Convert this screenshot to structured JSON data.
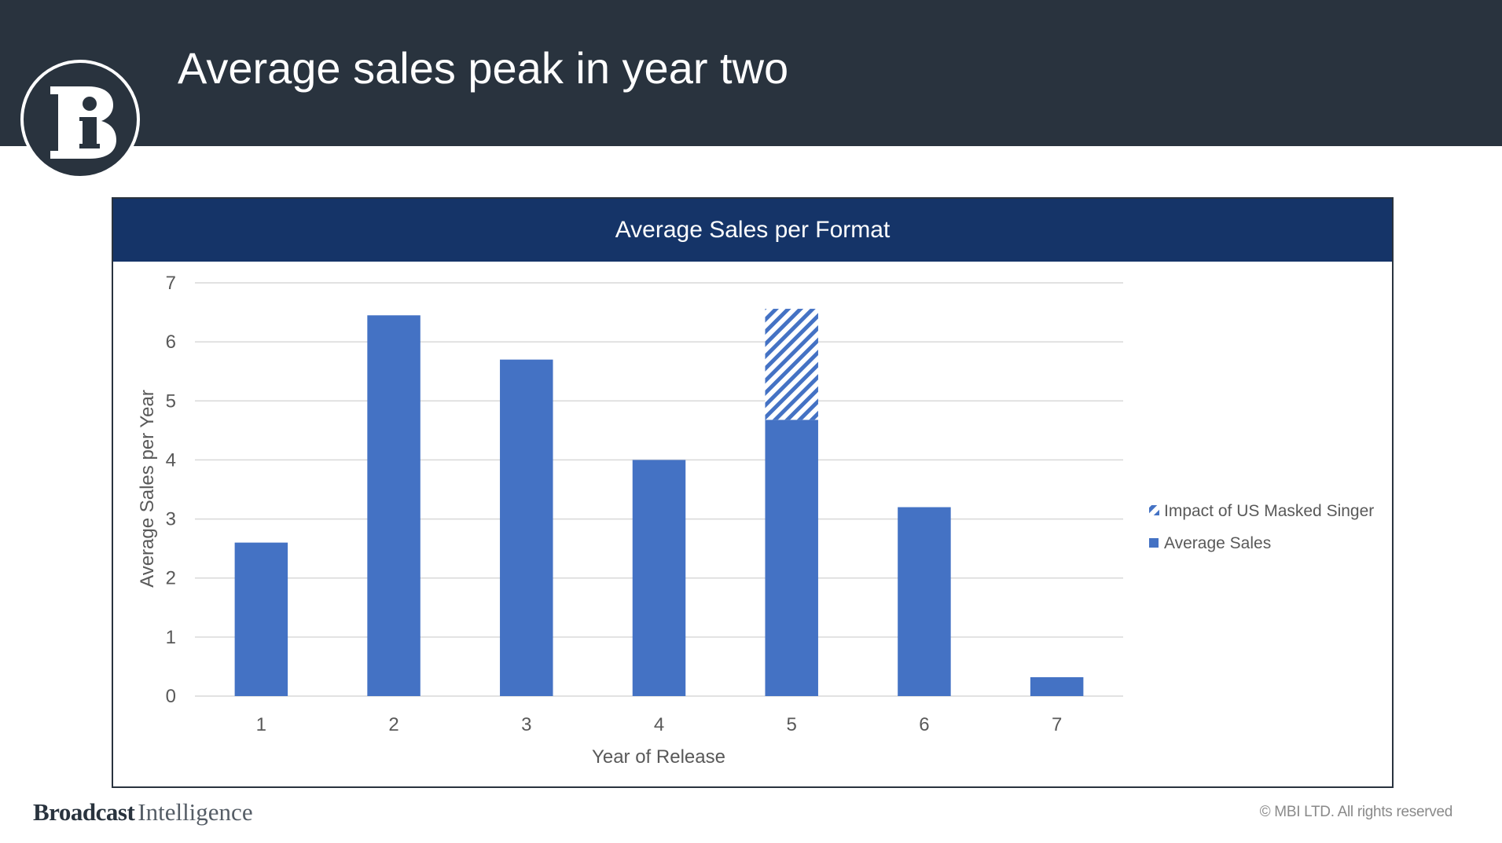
{
  "slide": {
    "title": "Average sales peak in year two",
    "logo_letter": "i",
    "brand_bold": "Broadcast",
    "brand_light": "Intelligence",
    "copyright": "© MBI LTD. All rights reserved"
  },
  "colors": {
    "header": "#29333e",
    "chart_title_band": "#153468",
    "bar": "#4472c4",
    "hatch": "#4472c4",
    "grid": "#d9d9d9",
    "text": "#595959"
  },
  "chart_data": {
    "type": "bar",
    "stacked": true,
    "title": "Average Sales per Format",
    "xlabel": "Year of Release",
    "ylabel": "Average Sales per Year",
    "categories": [
      "1",
      "2",
      "3",
      "4",
      "5",
      "6",
      "7"
    ],
    "ylim": [
      0,
      7
    ],
    "yticks": [
      "0",
      "1",
      "2",
      "3",
      "4",
      "5",
      "6",
      "7"
    ],
    "grid": true,
    "legend_position": "right",
    "series": [
      {
        "name": "Average Sales",
        "values": [
          2.6,
          6.45,
          5.7,
          4.0,
          4.68,
          3.2,
          0.32
        ],
        "pattern": "solid"
      },
      {
        "name": "Impact of US Masked Singer",
        "values": [
          0,
          0,
          0,
          0,
          1.88,
          0,
          0
        ],
        "pattern": "hatch"
      }
    ],
    "legend_order": [
      "Impact of US Masked Singer",
      "Average Sales"
    ]
  }
}
